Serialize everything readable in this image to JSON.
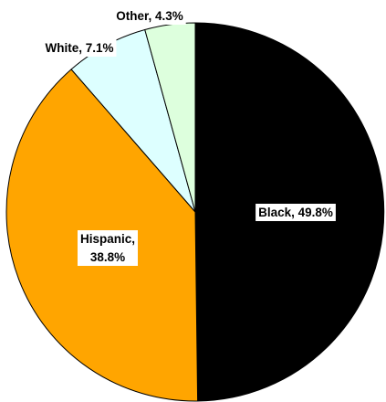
{
  "chart_data": {
    "type": "pie",
    "title": "",
    "start_angle_deg": 0,
    "direction": "clockwise",
    "slices": [
      {
        "name": "Black",
        "value": 49.8,
        "label_lines": [
          "Black, 49.8%"
        ],
        "color": "#000000"
      },
      {
        "name": "Hispanic",
        "value": 38.8,
        "label_lines": [
          "Hispanic,",
          "38.8%"
        ],
        "color": "#FFA500"
      },
      {
        "name": "White",
        "value": 7.1,
        "label_lines": [
          "White, 7.1%"
        ],
        "color": "#DDFFFF"
      },
      {
        "name": "Other",
        "value": 4.3,
        "label_lines": [
          "Other, 4.3%"
        ],
        "color": "#DDFFDD"
      }
    ],
    "slice_border_color": "#000000",
    "label_background": "#ffffff",
    "legend": "none"
  }
}
